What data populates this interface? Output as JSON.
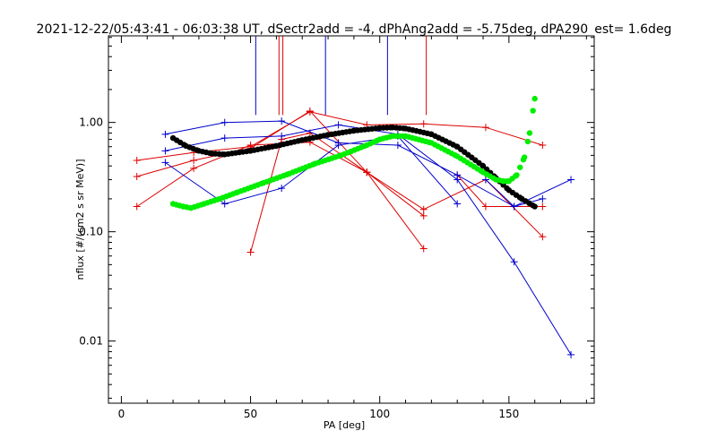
{
  "chart_data": {
    "type": "line",
    "title": "2021-12-22/05:43:41 - 06:03:38 UT, dSectr2add = -4, dPhAng2add = -5.75deg, dPA290_est=    1.6deg",
    "xlabel": "PA [deg]",
    "ylabel": "nflux [#/(cm2 s sr MeV)]",
    "xlim": [
      -5,
      183
    ],
    "ylim": [
      0.0027,
      6.2
    ],
    "yscale": "log",
    "xticks": [
      0,
      50,
      100,
      150
    ],
    "xtick_labels": [
      "0",
      "50",
      "100",
      "150"
    ],
    "yticks": [
      0.01,
      0.1,
      1.0
    ],
    "ytick_labels": [
      "0.01",
      "0.10",
      "1.00"
    ],
    "grid": false,
    "colors": {
      "red": "#dd0000",
      "blue": "#0000cc",
      "black": "#000000",
      "green": "#00ee00"
    },
    "vlines": [
      {
        "color": "blue",
        "x": 52,
        "y_from": 1.17,
        "y_to": 6.2
      },
      {
        "color": "red",
        "x": 61,
        "y_from": 1.17,
        "y_to": 6.2
      },
      {
        "color": "red",
        "x": 62.5,
        "y_from": 1.17,
        "y_to": 6.2
      },
      {
        "color": "blue",
        "x": 79,
        "y_from": 1.17,
        "y_to": 6.2
      },
      {
        "color": "blue",
        "x": 103,
        "y_from": 1.17,
        "y_to": 6.2
      },
      {
        "color": "red",
        "x": 118,
        "y_from": 1.17,
        "y_to": 6.2
      }
    ],
    "series": [
      {
        "color": "red",
        "x": [
          6,
          28,
          50,
          73,
          95,
          117,
          141,
          163
        ],
        "y": [
          0.45,
          0.53,
          0.6,
          1.25,
          0.95,
          0.97,
          0.9,
          0.62
        ]
      },
      {
        "color": "red",
        "x": [
          6,
          28,
          50,
          73,
          95,
          117
        ],
        "y": [
          0.32,
          0.45,
          0.58,
          1.27,
          0.35,
          0.14
        ]
      },
      {
        "color": "red",
        "x": [
          6,
          28,
          50,
          73,
          95,
          117
        ],
        "y": [
          0.17,
          0.38,
          0.62,
          0.66,
          0.35,
          0.07
        ]
      },
      {
        "color": "red",
        "x": [
          50,
          62,
          73,
          95,
          117,
          141,
          163
        ],
        "y": [
          0.065,
          0.7,
          0.8,
          0.35,
          0.16,
          0.3,
          0.09
        ]
      },
      {
        "color": "red",
        "x": [
          130,
          141,
          163
        ],
        "y": [
          0.33,
          0.17,
          0.17
        ]
      },
      {
        "color": "blue",
        "x": [
          17,
          40,
          62,
          84,
          107,
          130,
          152,
          174
        ],
        "y": [
          0.78,
          1.0,
          1.03,
          0.65,
          0.62,
          0.33,
          0.17,
          0.3
        ]
      },
      {
        "color": "blue",
        "x": [
          17,
          40,
          62,
          84,
          107,
          130,
          152,
          174
        ],
        "y": [
          0.55,
          0.72,
          0.75,
          0.95,
          0.78,
          0.3,
          0.053,
          0.0075
        ]
      },
      {
        "color": "blue",
        "x": [
          17,
          40,
          62,
          84,
          107,
          130
        ],
        "y": [
          0.43,
          0.18,
          0.25,
          0.62,
          0.75,
          0.18
        ]
      },
      {
        "color": "blue",
        "x": [
          141,
          152,
          163
        ],
        "y": [
          0.3,
          0.17,
          0.2
        ]
      }
    ],
    "black_curve": {
      "x": [
        20,
        25,
        30,
        35,
        40,
        50,
        60,
        70,
        80,
        90,
        100,
        105,
        110,
        120,
        130,
        140,
        145,
        150,
        155,
        160
      ],
      "y": [
        0.72,
        0.61,
        0.55,
        0.52,
        0.51,
        0.55,
        0.61,
        0.69,
        0.77,
        0.84,
        0.89,
        0.9,
        0.88,
        0.78,
        0.6,
        0.4,
        0.31,
        0.24,
        0.2,
        0.17
      ]
    },
    "green_curve": {
      "x": [
        20,
        24,
        27,
        32,
        38,
        45,
        55,
        65,
        75,
        85,
        95,
        100,
        105,
        110,
        120,
        130,
        140,
        145,
        148,
        150,
        153,
        156,
        158,
        160
      ],
      "y": [
        0.18,
        0.17,
        0.165,
        0.18,
        0.2,
        0.23,
        0.28,
        0.34,
        0.42,
        0.5,
        0.62,
        0.7,
        0.75,
        0.75,
        0.65,
        0.49,
        0.35,
        0.3,
        0.29,
        0.29,
        0.33,
        0.48,
        0.8,
        1.65
      ]
    }
  }
}
